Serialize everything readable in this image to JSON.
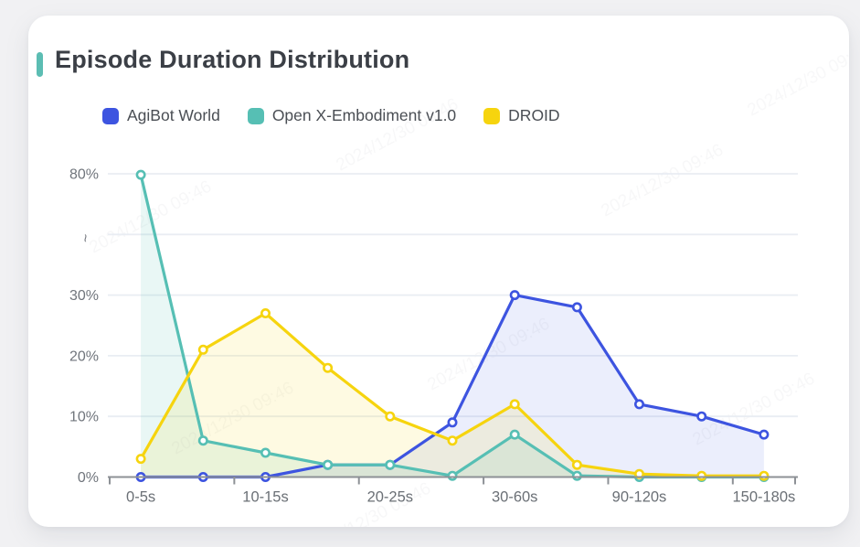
{
  "header": {
    "title": "Episode Duration Distribution"
  },
  "watermark": {
    "text": "2024/12/30 09:46"
  },
  "colors": {
    "accent": "#5cbdb3",
    "page_bg": "#f1f1f3",
    "card_bg": "#ffffff",
    "grid": "#e9edf3",
    "axis": "#8d9196",
    "y_label": "#70757c",
    "x_label": "#6b7076",
    "title": "#3b3f46"
  },
  "chart_data": {
    "type": "line",
    "title": "Episode Duration Distribution",
    "num_points": 11,
    "x_label_every": 2,
    "x_tick_labels": [
      "0-5s",
      "10-15s",
      "20-25s",
      "30-60s",
      "90-120s",
      "150-180s"
    ],
    "y_axis": {
      "unit": "%",
      "tick_labels": [
        "0%",
        "10%",
        "20%",
        "30%",
        "~",
        "80%"
      ],
      "break_marker": "~",
      "break_segment": [
        30,
        80
      ],
      "visible_range_low": [
        0,
        30
      ],
      "top_value": 80
    },
    "grid": true,
    "legend_position": "top",
    "series": [
      {
        "name": "AgiBot World",
        "color": "#3d54e0",
        "fill_opacity": 0.1,
        "values": [
          0,
          0,
          0,
          2,
          2,
          9,
          30,
          28,
          12,
          10,
          7
        ]
      },
      {
        "name": "Open X-Embodiment v1.0",
        "color": "#56bfb4",
        "fill_opacity": 0.13,
        "values": [
          79.6,
          6,
          4,
          2,
          2,
          0.2,
          7,
          0.2,
          0,
          0,
          0
        ]
      },
      {
        "name": "DROID",
        "color": "#f6d40e",
        "fill_opacity": 0.12,
        "values": [
          3,
          21,
          27,
          18,
          10,
          6,
          12,
          2,
          0.5,
          0.2,
          0.2
        ]
      }
    ]
  }
}
